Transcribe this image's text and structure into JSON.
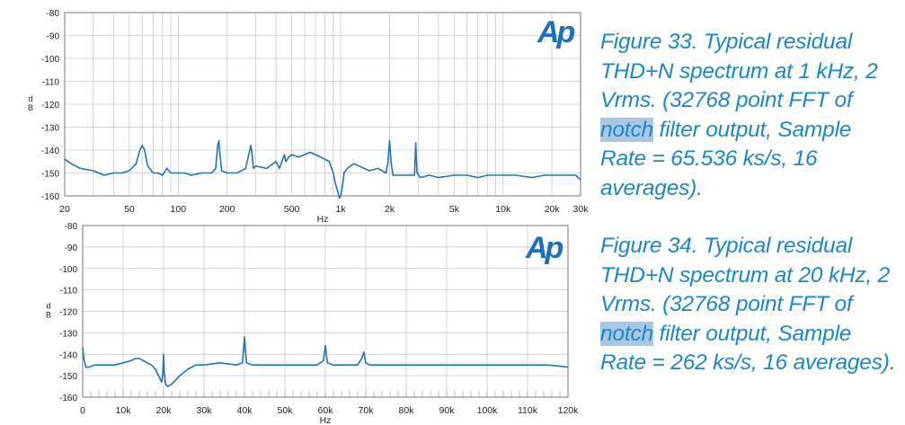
{
  "colors": {
    "trace": "#1f77b4",
    "caption": "#1b87c9",
    "highlight": "#a9c7e3",
    "logo": "#1b6fc2",
    "grid": "#c8c8c8"
  },
  "logo_text": "Ap",
  "captions": [
    {
      "before": "Figure 33. Typical residual THD+N spectrum at 1 kHz, 2 Vrms. (32768 point FFT of ",
      "highlight": "notch",
      "after": " filter output, Sample Rate = 65.536 ks/s, 16 averages)."
    },
    {
      "before": "Figure 34. Typical residual THD+N spectrum at 20 kHz, 2 Vrms. (32768 point FFT of ",
      "highlight": "notch",
      "after": " filter output, Sample Rate = 262 ks/s, 16 averages)."
    }
  ],
  "chart_data": [
    {
      "type": "line",
      "xscale": "log",
      "xlabel": "Hz",
      "ylabel": "dB",
      "xlim": [
        20,
        30000
      ],
      "ylim": [
        -160,
        -80
      ],
      "yticks": [
        -80,
        -90,
        -100,
        -110,
        -120,
        -130,
        -140,
        -150,
        -160
      ],
      "xticks": [
        {
          "v": 20,
          "label": "20"
        },
        {
          "v": 50,
          "label": "50"
        },
        {
          "v": 100,
          "label": "100"
        },
        {
          "v": 200,
          "label": "200"
        },
        {
          "v": 500,
          "label": "500"
        },
        {
          "v": 1000,
          "label": "1k"
        },
        {
          "v": 2000,
          "label": "2k"
        },
        {
          "v": 5000,
          "label": "5k"
        },
        {
          "v": 10000,
          "label": "10k"
        },
        {
          "v": 20000,
          "label": "20k"
        },
        {
          "v": 30000,
          "label": "30k"
        }
      ],
      "grid": true,
      "series": [
        {
          "x": [
            20,
            22,
            25,
            30,
            35,
            40,
            45,
            50,
            55,
            58,
            60,
            62,
            65,
            70,
            75,
            80,
            85,
            90,
            100,
            110,
            120,
            140,
            160,
            170,
            175,
            178,
            180,
            185,
            200,
            230,
            260,
            280,
            285,
            290,
            300,
            350,
            400,
            420,
            440,
            450,
            460,
            480,
            500,
            550,
            600,
            650,
            700,
            750,
            800,
            850,
            900,
            930,
            960,
            980,
            1000,
            1020,
            1050,
            1100,
            1200,
            1300,
            1500,
            1700,
            1900,
            1950,
            2000,
            2050,
            2100,
            2300,
            2600,
            2850,
            2900,
            2950,
            3100,
            3500,
            4000,
            5000,
            6000,
            7000,
            8000,
            10000,
            12000,
            15000,
            18000,
            20000,
            25000,
            28000,
            30000
          ],
          "y": [
            -144,
            -146,
            -148,
            -149,
            -151,
            -150,
            -150,
            -149,
            -146,
            -140,
            -138,
            -140,
            -147,
            -150,
            -150,
            -151,
            -148,
            -150,
            -150,
            -150,
            -151,
            -150,
            -150,
            -148,
            -138,
            -136,
            -141,
            -149,
            -150,
            -150,
            -148,
            -138,
            -142,
            -148,
            -147,
            -148,
            -145,
            -148,
            -144,
            -142,
            -145,
            -143,
            -142,
            -143,
            -142,
            -141,
            -142,
            -143,
            -144,
            -145,
            -150,
            -155,
            -158,
            -161,
            -160,
            -157,
            -150,
            -148,
            -146,
            -147,
            -149,
            -148,
            -150,
            -146,
            -136,
            -146,
            -151,
            -151,
            -151,
            -151,
            -137,
            -150,
            -152,
            -151,
            -152,
            -151,
            -151,
            -152,
            -151,
            -151,
            -151,
            -152,
            -151,
            -151,
            -151,
            -151,
            -153
          ]
        }
      ]
    },
    {
      "type": "line",
      "xscale": "linear",
      "xlabel": "Hz",
      "ylabel": "dB",
      "xlim": [
        0,
        120000
      ],
      "ylim": [
        -160,
        -80
      ],
      "yticks": [
        -80,
        -90,
        -100,
        -110,
        -120,
        -130,
        -140,
        -150,
        -160
      ],
      "xticks": [
        {
          "v": 0,
          "label": "0"
        },
        {
          "v": 10000,
          "label": "10k"
        },
        {
          "v": 20000,
          "label": "20k"
        },
        {
          "v": 30000,
          "label": "30k"
        },
        {
          "v": 40000,
          "label": "40k"
        },
        {
          "v": 50000,
          "label": "50k"
        },
        {
          "v": 60000,
          "label": "60k"
        },
        {
          "v": 70000,
          "label": "70k"
        },
        {
          "v": 80000,
          "label": "80k"
        },
        {
          "v": 90000,
          "label": "90k"
        },
        {
          "v": 100000,
          "label": "100k"
        },
        {
          "v": 110000,
          "label": "110k"
        },
        {
          "v": 120000,
          "label": "120k"
        }
      ],
      "grid": true,
      "series": [
        {
          "x": [
            0,
            300,
            800,
            1500,
            3000,
            5000,
            8000,
            10000,
            12000,
            13000,
            14000,
            15000,
            16000,
            17000,
            18000,
            19000,
            19500,
            19800,
            20000,
            20200,
            20500,
            21000,
            22000,
            24000,
            26000,
            28000,
            30000,
            34000,
            38000,
            39500,
            40000,
            40500,
            42000,
            46000,
            50000,
            55000,
            58000,
            59500,
            60000,
            60500,
            62000,
            66000,
            68000,
            69000,
            69500,
            70000,
            71000,
            75000,
            80000,
            85000,
            90000,
            95000,
            100000,
            105000,
            110000,
            115000,
            120000
          ],
          "y": [
            -137,
            -142,
            -146,
            -146,
            -145,
            -145,
            -145,
            -144,
            -143,
            -142,
            -142,
            -143,
            -144,
            -145,
            -147,
            -151,
            -153,
            -149,
            -140,
            -149,
            -154,
            -155,
            -154,
            -150,
            -147,
            -145,
            -145,
            -144,
            -145,
            -144,
            -132,
            -144,
            -145,
            -145,
            -145,
            -145,
            -145,
            -143,
            -136,
            -144,
            -145,
            -145,
            -145,
            -142,
            -139,
            -144,
            -145,
            -145,
            -145,
            -145,
            -145,
            -145,
            -145,
            -145,
            -145,
            -145,
            -146
          ]
        }
      ]
    }
  ]
}
